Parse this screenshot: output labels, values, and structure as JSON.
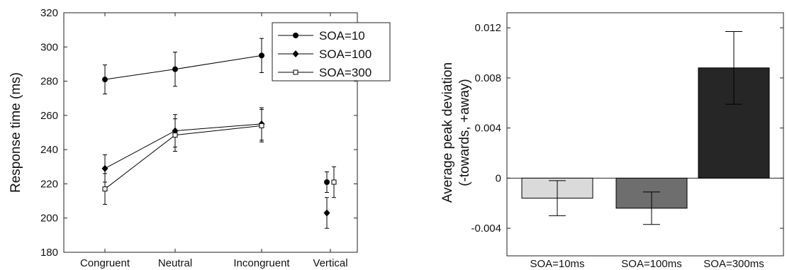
{
  "chart_data": [
    {
      "type": "line",
      "title": "",
      "xlabel": "",
      "ylabel": "Response time (ms)",
      "ylim": [
        180,
        320
      ],
      "yticks": [
        180,
        200,
        220,
        240,
        260,
        280,
        300,
        320
      ],
      "categories": [
        "Congruent",
        "Neutral",
        "Incongruent",
        "Vertical"
      ],
      "connected_categories": [
        "Congruent",
        "Neutral",
        "Incongruent"
      ],
      "legend": {
        "placement": "top-right"
      },
      "grid": false,
      "series": [
        {
          "name": "SOA=10",
          "marker": "circle",
          "color": "#000000",
          "values": [
            281,
            287,
            295,
            221
          ],
          "errors": [
            8.5,
            10,
            10,
            6
          ]
        },
        {
          "name": "SOA=100",
          "marker": "diamond",
          "color": "#000000",
          "values": [
            229,
            251,
            255,
            203
          ],
          "errors": [
            8,
            9.5,
            9.5,
            9
          ]
        },
        {
          "name": "SOA=300",
          "marker": "open-square",
          "color": "#000000",
          "values": [
            217,
            248.5,
            254,
            221
          ],
          "errors": [
            9,
            9.5,
            9.5,
            9
          ]
        }
      ]
    },
    {
      "type": "bar",
      "title": "",
      "xlabel": "",
      "ylabel": "Average peak deviation",
      "ylabel_line2": "(-towards, +away)",
      "ylim": [
        -0.0062,
        0.0132
      ],
      "yticks": [
        {
          "value": -0.004,
          "label": "-0.004"
        },
        {
          "value": 0,
          "label": "0"
        },
        {
          "value": 0.004,
          "label": "0.004"
        },
        {
          "value": 0.008,
          "label": "0.008"
        },
        {
          "value": 0.012,
          "label": "0.012"
        }
      ],
      "grid": false,
      "categories": [
        "SOA=10ms",
        "SOA=100ms",
        "SOA=300ms"
      ],
      "values": [
        -0.0016,
        -0.0024,
        0.0088
      ],
      "errors": [
        0.0014,
        0.0013,
        0.0029
      ],
      "colors": [
        "#dadada",
        "#6e6e6e",
        "#262626"
      ]
    }
  ]
}
